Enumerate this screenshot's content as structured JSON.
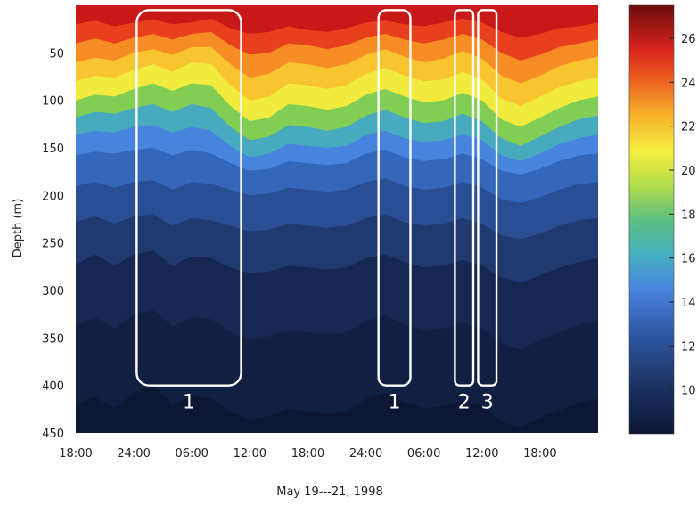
{
  "chart_data": {
    "type": "heatmap",
    "title": "",
    "xlabel": "May 19---21, 1998",
    "ylabel": "Depth (m)",
    "x_tick_labels": [
      "18:00",
      "24:00",
      "06:00",
      "12:00",
      "18:00",
      "24:00",
      "06:00",
      "12:00",
      "18:00"
    ],
    "x_tick_hours": [
      0,
      6,
      12,
      18,
      24,
      30,
      36,
      42,
      48
    ],
    "x_range_hours": [
      0,
      54
    ],
    "y_ticks": [
      50,
      100,
      150,
      200,
      250,
      300,
      350,
      400,
      450
    ],
    "y_range": [
      0,
      450
    ],
    "y_inverted": true,
    "colorbar": {
      "ticks": [
        10,
        12,
        14,
        16,
        18,
        20,
        22,
        24,
        26
      ],
      "range": [
        8,
        27.5
      ]
    },
    "isotherms": [
      {
        "level": 26,
        "depth": [
          20,
          16,
          22,
          18,
          15,
          20,
          18,
          14,
          24,
          30,
          28,
          22,
          26,
          28,
          24,
          18,
          16,
          20,
          22,
          18,
          14,
          18,
          28,
          34,
          30,
          24,
          22,
          18
        ]
      },
      {
        "level": 24,
        "depth": [
          40,
          35,
          40,
          34,
          30,
          36,
          30,
          28,
          42,
          52,
          50,
          40,
          42,
          46,
          42,
          34,
          30,
          36,
          40,
          36,
          30,
          36,
          50,
          58,
          52,
          44,
          40,
          36
        ]
      },
      {
        "level": 22,
        "depth": [
          60,
          55,
          58,
          50,
          46,
          52,
          44,
          44,
          62,
          76,
          72,
          60,
          62,
          66,
          62,
          52,
          46,
          54,
          60,
          56,
          48,
          56,
          74,
          82,
          74,
          64,
          58,
          54
        ]
      },
      {
        "level": 20,
        "depth": [
          80,
          74,
          76,
          68,
          62,
          70,
          60,
          62,
          84,
          100,
          96,
          82,
          84,
          88,
          84,
          72,
          66,
          74,
          80,
          78,
          70,
          78,
          98,
          106,
          96,
          86,
          80,
          76
        ]
      },
      {
        "level": 18,
        "depth": [
          100,
          94,
          96,
          88,
          82,
          90,
          82,
          84,
          106,
          122,
          118,
          104,
          106,
          110,
          106,
          94,
          88,
          96,
          102,
          100,
          92,
          100,
          120,
          128,
          118,
          108,
          100,
          96
        ]
      },
      {
        "level": 16,
        "depth": [
          118,
          112,
          114,
          108,
          104,
          112,
          104,
          108,
          128,
          142,
          138,
          126,
          128,
          132,
          128,
          116,
          110,
          118,
          124,
          122,
          114,
          122,
          140,
          148,
          138,
          128,
          120,
          116
        ]
      },
      {
        "level": 14,
        "depth": [
          136,
          132,
          134,
          128,
          126,
          134,
          128,
          132,
          148,
          160,
          156,
          146,
          148,
          150,
          148,
          136,
          132,
          140,
          144,
          142,
          136,
          142,
          158,
          164,
          156,
          146,
          140,
          136
        ]
      },
      {
        "level": 13,
        "depth": [
          158,
          154,
          156,
          152,
          150,
          158,
          152,
          156,
          166,
          174,
          172,
          164,
          166,
          168,
          166,
          156,
          152,
          160,
          164,
          162,
          156,
          162,
          174,
          178,
          172,
          164,
          158,
          156
        ]
      },
      {
        "level": 12,
        "depth": [
          190,
          186,
          192,
          186,
          184,
          194,
          186,
          188,
          194,
          200,
          198,
          192,
          194,
          196,
          194,
          186,
          182,
          190,
          194,
          192,
          186,
          192,
          204,
          208,
          202,
          194,
          188,
          186
        ]
      },
      {
        "level": 11,
        "depth": [
          228,
          222,
          230,
          222,
          220,
          232,
          224,
          226,
          232,
          238,
          236,
          230,
          232,
          234,
          232,
          224,
          220,
          228,
          232,
          230,
          224,
          230,
          242,
          246,
          240,
          232,
          226,
          224
        ]
      },
      {
        "level": 10,
        "depth": [
          272,
          262,
          274,
          262,
          258,
          274,
          264,
          266,
          276,
          282,
          280,
          274,
          276,
          278,
          276,
          266,
          262,
          270,
          276,
          274,
          268,
          274,
          286,
          292,
          284,
          276,
          270,
          266
        ]
      },
      {
        "level": 9,
        "depth": [
          338,
          328,
          340,
          326,
          320,
          338,
          328,
          330,
          344,
          352,
          348,
          342,
          344,
          346,
          344,
          332,
          326,
          336,
          342,
          340,
          334,
          340,
          356,
          362,
          352,
          344,
          336,
          332
        ]
      },
      {
        "level": 8.5,
        "depth": [
          420,
          412,
          424,
          408,
          400,
          420,
          410,
          414,
          428,
          436,
          432,
          424,
          428,
          430,
          428,
          414,
          408,
          418,
          424,
          422,
          416,
          422,
          438,
          444,
          434,
          426,
          418,
          414
        ]
      }
    ],
    "annotation_boxes": [
      {
        "label": "1",
        "x_start_h": 6.3,
        "x_end_h": 17.1,
        "depth_top": 5,
        "depth_bottom": 400
      },
      {
        "label": "1",
        "x_start_h": 31.3,
        "x_end_h": 34.6,
        "depth_top": 5,
        "depth_bottom": 400
      },
      {
        "label": "2",
        "x_start_h": 39.2,
        "x_end_h": 41.1,
        "depth_top": 5,
        "depth_bottom": 400
      },
      {
        "label": "3",
        "x_start_h": 41.6,
        "x_end_h": 43.5,
        "depth_top": 5,
        "depth_bottom": 400
      }
    ]
  }
}
